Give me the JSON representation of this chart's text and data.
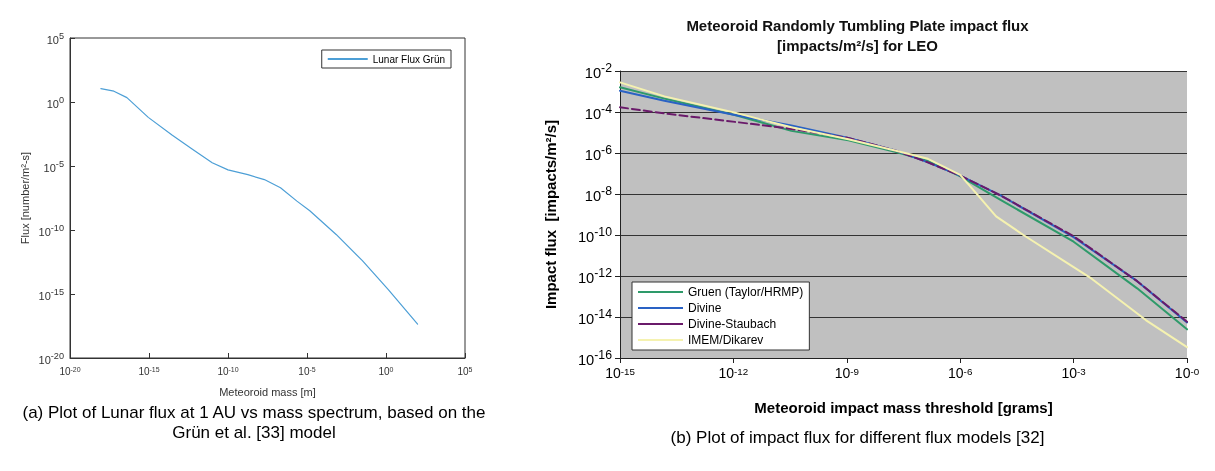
{
  "chart_data": [
    {
      "type": "line",
      "xlabel": "Meteoroid mass [m]",
      "ylabel": "Flux [number/m²-s]",
      "log": "xy",
      "grid": false,
      "legend": "top right",
      "marker": "none",
      "xlim": [
        1e-20,
        100000.0
      ],
      "ylim": [
        1e-20,
        100000.0
      ],
      "xticks": [
        {
          "value": 1e-20,
          "label": "10$^{-20}$"
        },
        {
          "value": 1e-15,
          "label": "10$^{-15}$"
        },
        {
          "value": 1e-10,
          "label": "10$^{-10}$"
        },
        {
          "value": 1e-05,
          "label": "10$^{-5}$"
        },
        {
          "value": 1,
          "label": "10$^{0}$"
        },
        {
          "value": 100000.0,
          "label": "10$^{5}$"
        }
      ],
      "yticks": [
        {
          "value": 1e-20,
          "label": "10$^{-20}$"
        },
        {
          "value": 1e-15,
          "label": "10$^{-15}$"
        },
        {
          "value": 1e-10,
          "label": "10$^{-10}$"
        },
        {
          "value": 1e-05,
          "label": "10$^{-5}$"
        },
        {
          "value": 1,
          "label": "10$^{0}$"
        },
        {
          "value": 100000.0,
          "label": "10$^{5}$"
        }
      ],
      "x": [
        9e-19,
        6e-18,
        4e-17,
        9e-16,
        3e-14,
        5.6e-13,
        1e-11,
        1e-10,
        1.8e-09,
        2e-08,
        2.1e-07,
        2.3e-06,
        1.5e-05,
        0.0007,
        0.032,
        1.4,
        100
      ],
      "series": [
        {
          "name": "Lunar Flux Grün",
          "color": "#4d9fd6",
          "values": [
            11,
            7,
            2.2,
            0.063,
            0.0025,
            0.0002,
            1.8e-05,
            5e-06,
            2.1e-06,
            8.7e-07,
            2e-07,
            1.8e-08,
            3.2e-09,
            4.5e-11,
            4e-13,
            2.2e-15,
            4.5e-18
          ]
        }
      ],
      "annotations": [
        "(a) Plot of Lunar flux at 1 AU vs mass spectrum, based on the Grün et al. [33] model"
      ]
    },
    {
      "type": "line",
      "title": "Meteoroid Randomly Tumbling Plate impact flux\n[impacts/m²/s] for LEO",
      "xlabel": "Meteoroid impact mass threshold [grams]",
      "ylabel": "Impact flux  [impacts/m²/s]",
      "log": "xy",
      "grid": "y",
      "legend": "bottom left",
      "marker": "none",
      "xlim": [
        1e-15,
        1
      ],
      "ylim": [
        1e-16,
        0.01
      ],
      "xticks": [
        {
          "value": 1e-15,
          "label": "10$^{-15}$"
        },
        {
          "value": 1e-12,
          "label": "10$^{-12}$"
        },
        {
          "value": 1e-09,
          "label": "10$^{-9}$"
        },
        {
          "value": 1e-06,
          "label": "10$^{-6}$"
        },
        {
          "value": 0.001,
          "label": "10$^{-3}$"
        },
        {
          "value": 1,
          "label": "10$^{-0}$"
        }
      ],
      "yticks": [
        {
          "value": 1e-16,
          "label": "10$^{-16}$"
        },
        {
          "value": 1e-14,
          "label": "10$^{-14}$"
        },
        {
          "value": 1e-12,
          "label": "10$^{-12}$"
        },
        {
          "value": 1e-10,
          "label": "10$^{-10}$"
        },
        {
          "value": 1e-08,
          "label": "10$^{-8}$"
        },
        {
          "value": 1e-06,
          "label": "10$^{-6}$"
        },
        {
          "value": 0.0001,
          "label": "10$^{-4}$"
        },
        {
          "value": 0.01,
          "label": "10$^{-2}$"
        }
      ],
      "x": [
        1e-15,
        1.5e-14,
        1.1e-12,
        3.4e-11,
        1.1e-09,
        2e-08,
        1.4e-07,
        1e-06,
        1.2e-05,
        0.001,
        0.048,
        1
      ],
      "series": [
        {
          "name": "Gruen (Taylor/HRMP)",
          "color": "#2e9a6a",
          "values": [
            0.0016,
            0.00045,
            7.2e-05,
            1.2e-05,
            4.2e-06,
            1.1e-06,
            4.1e-07,
            7.2e-08,
            5e-09,
            4.7e-11,
            2.5e-13,
            2.5e-15
          ]
        },
        {
          "name": "Divine",
          "color": "#2a62c4",
          "values": [
            0.0011,
            0.00035,
            7.2e-05,
            2.2e-05,
            5.4e-06,
            1.3e-06,
            3.5e-07,
            7.9e-08,
            8.3e-09,
            7.9e-11,
            5.6e-13,
            5.4e-15
          ]
        },
        {
          "name": "Divine-Staubach",
          "color": "#6a1a6a",
          "line_style": "dashed",
          "values": [
            0.00017,
            8.5e-05,
            3.3e-05,
            1.5e-05,
            5.4e-06,
            1.3e-06,
            3.5e-07,
            7.9e-08,
            8.3e-09,
            8.7e-11,
            5.6e-13,
            5.9e-15
          ]
        },
        {
          "name": "IMEM/Dikarev",
          "color": "#f5f2b0",
          "x": [
            1e-15,
            1.5e-14,
            1.1e-12,
            3.4e-11,
            1.1e-09,
            2e-08,
            1.4e-07,
            1e-06,
            3e-06,
            8.9e-06,
            4.7e-05,
            0.003,
            0.083,
            1
          ],
          "values": [
            0.0028,
            0.00058,
            9.3e-05,
            1.8e-05,
            4.7e-06,
            1.3e-06,
            5.2e-07,
            8.5e-08,
            8.3e-09,
            8.1e-10,
            1e-10,
            7.4e-13,
            6.9e-15,
            3.4e-16
          ]
        }
      ],
      "annotations": [
        "(b) Plot of impact flux for different flux models [32]"
      ]
    }
  ]
}
